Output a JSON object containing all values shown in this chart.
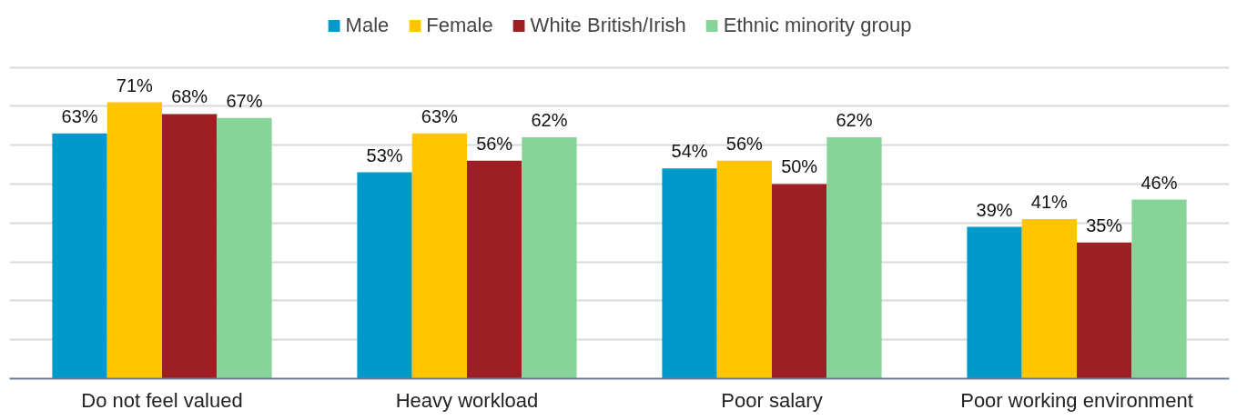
{
  "chart_data": {
    "type": "bar",
    "categories": [
      "Do not feel valued",
      "Heavy workload",
      "Poor salary",
      "Poor working environment"
    ],
    "series": [
      {
        "name": "Male",
        "color": "#0099cc",
        "values": [
          63,
          53,
          54,
          39
        ],
        "value_labels": [
          "63%",
          "53%",
          "54%",
          "39%"
        ]
      },
      {
        "name": "Female",
        "color": "#ffc600",
        "values": [
          71,
          63,
          56,
          41
        ],
        "value_labels": [
          "71%",
          "63%",
          "56%",
          "41%"
        ]
      },
      {
        "name": "White British/Irish",
        "color": "#9b1f23",
        "values": [
          68,
          56,
          50,
          35
        ],
        "value_labels": [
          "68%",
          "56%",
          "50%",
          "35%"
        ]
      },
      {
        "name": "Ethnic minority group",
        "color": "#88d498",
        "values": [
          67,
          62,
          62,
          46
        ],
        "value_labels": [
          "67%",
          "62%",
          "62%",
          "46%"
        ]
      }
    ],
    "yticks": [
      {
        "value": 0,
        "label": null
      },
      {
        "value": 10,
        "label": null
      },
      {
        "value": 20,
        "label": null
      },
      {
        "value": 30,
        "label": null
      },
      {
        "value": 40,
        "label": null
      },
      {
        "value": 50,
        "label": null
      },
      {
        "value": 60,
        "label": null
      },
      {
        "value": 70,
        "label": null
      },
      {
        "value": 80,
        "label": null
      }
    ],
    "tick_labels": "x",
    "grid": "y",
    "legend": "top"
  }
}
